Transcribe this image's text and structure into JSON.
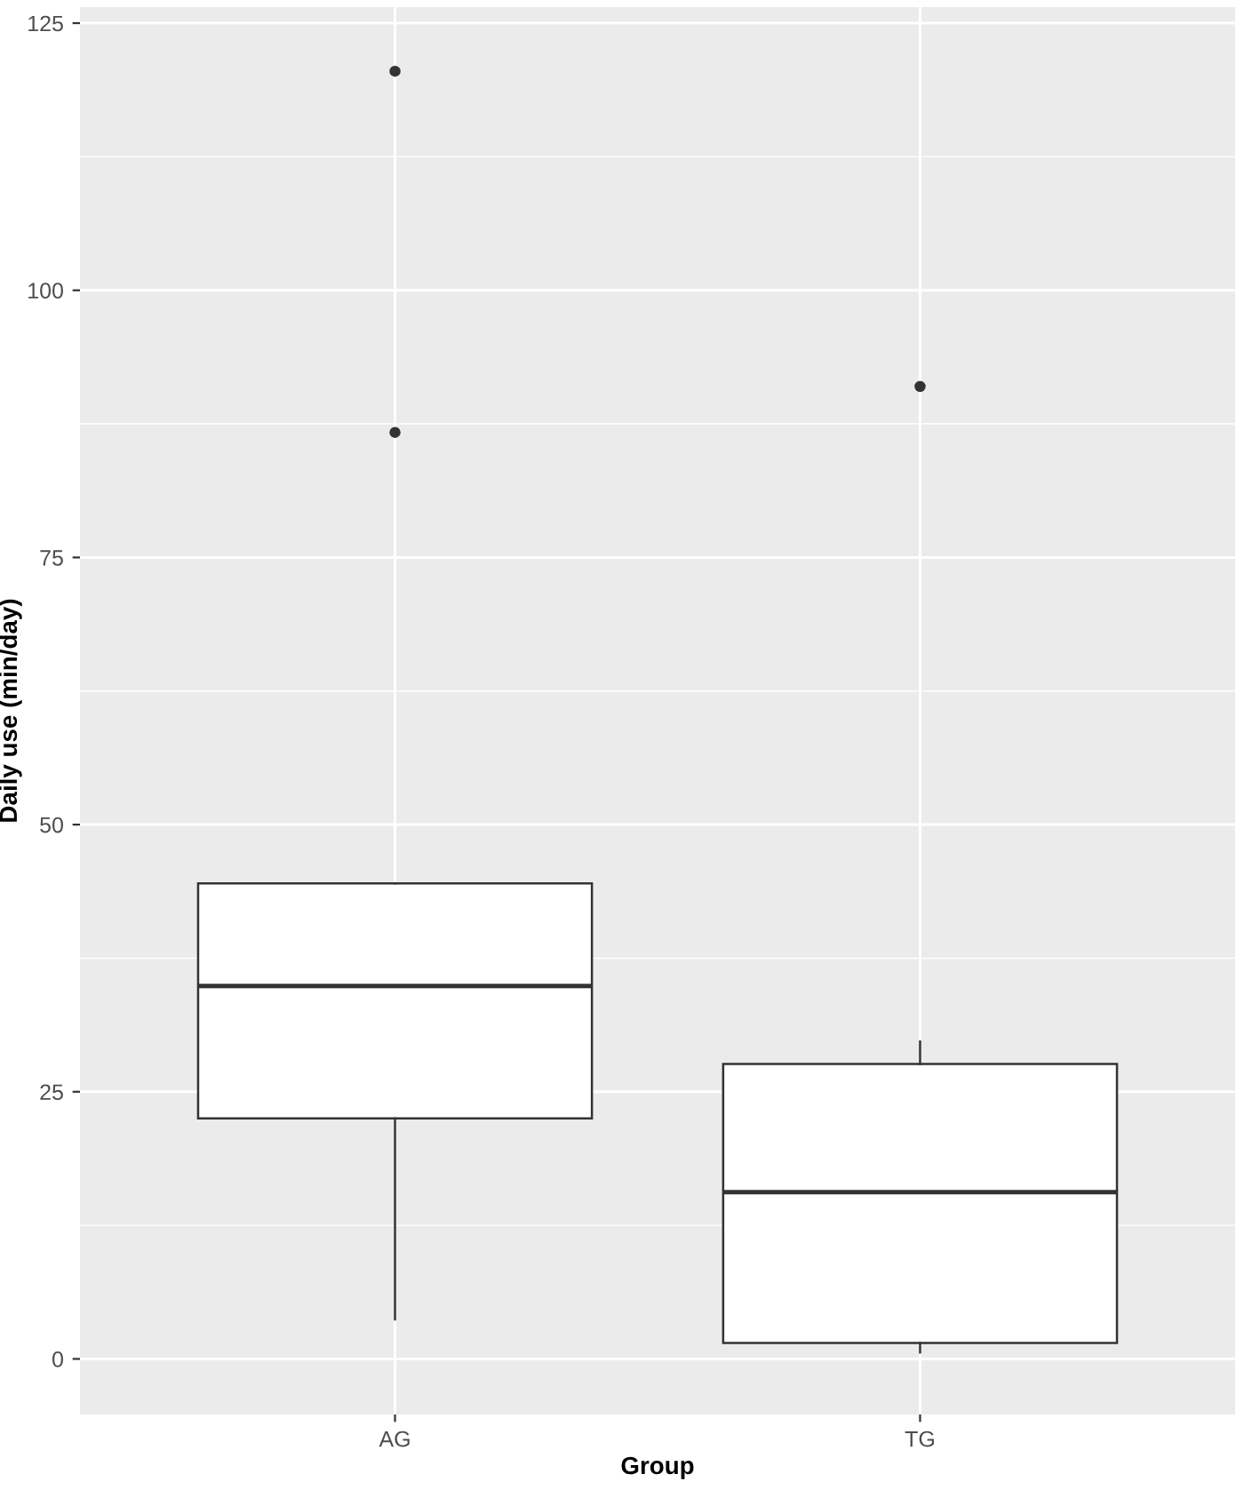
{
  "chart_data": {
    "type": "box",
    "xlabel": "Group",
    "ylabel": "Daily use (min/day)",
    "categories": [
      "AG",
      "TG"
    ],
    "boxes": [
      {
        "low": 3.7,
        "q1": 22.5,
        "median": 34.9,
        "q3": 44.5,
        "high": 44.5,
        "outliers": [
          86.7,
          120.5
        ]
      },
      {
        "low": 0.6,
        "q1": 1.5,
        "median": 15.6,
        "q3": 27.6,
        "high": 29.7,
        "outliers": [
          91.0
        ]
      }
    ],
    "ylim": [
      -5.2,
      126.5
    ],
    "yticks": [
      0,
      25,
      50,
      75,
      100,
      125
    ],
    "grid": true
  }
}
